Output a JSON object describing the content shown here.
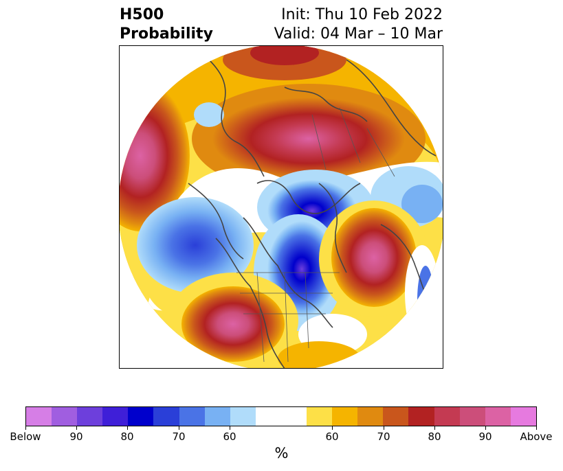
{
  "title": {
    "left_line1": "H500",
    "left_line2": "Probability",
    "right_line1": "Init: Thu 10 Feb 2022",
    "right_line2": "Valid: 04 Mar – 10 Mar"
  },
  "colorbar": {
    "colors": [
      "#d67ee6",
      "#a05ee0",
      "#6d3fdc",
      "#3f1fd8",
      "#0000cc",
      "#2a3fd8",
      "#4a73e6",
      "#78b1f3",
      "#b0dcfa",
      "#ffffff",
      "#ffffff",
      "#fde047",
      "#f5b400",
      "#e08a10",
      "#c9561c",
      "#b22222",
      "#c43a52",
      "#cc4e7a",
      "#dc62a4",
      "#e67adf"
    ],
    "labels": [
      "Below",
      "90",
      "80",
      "70",
      "60",
      "60",
      "70",
      "80",
      "90",
      "Above"
    ],
    "unit": "%"
  },
  "map": {
    "projection": "north-polar-stereographic",
    "field": "500 hPa height anomaly probability"
  }
}
